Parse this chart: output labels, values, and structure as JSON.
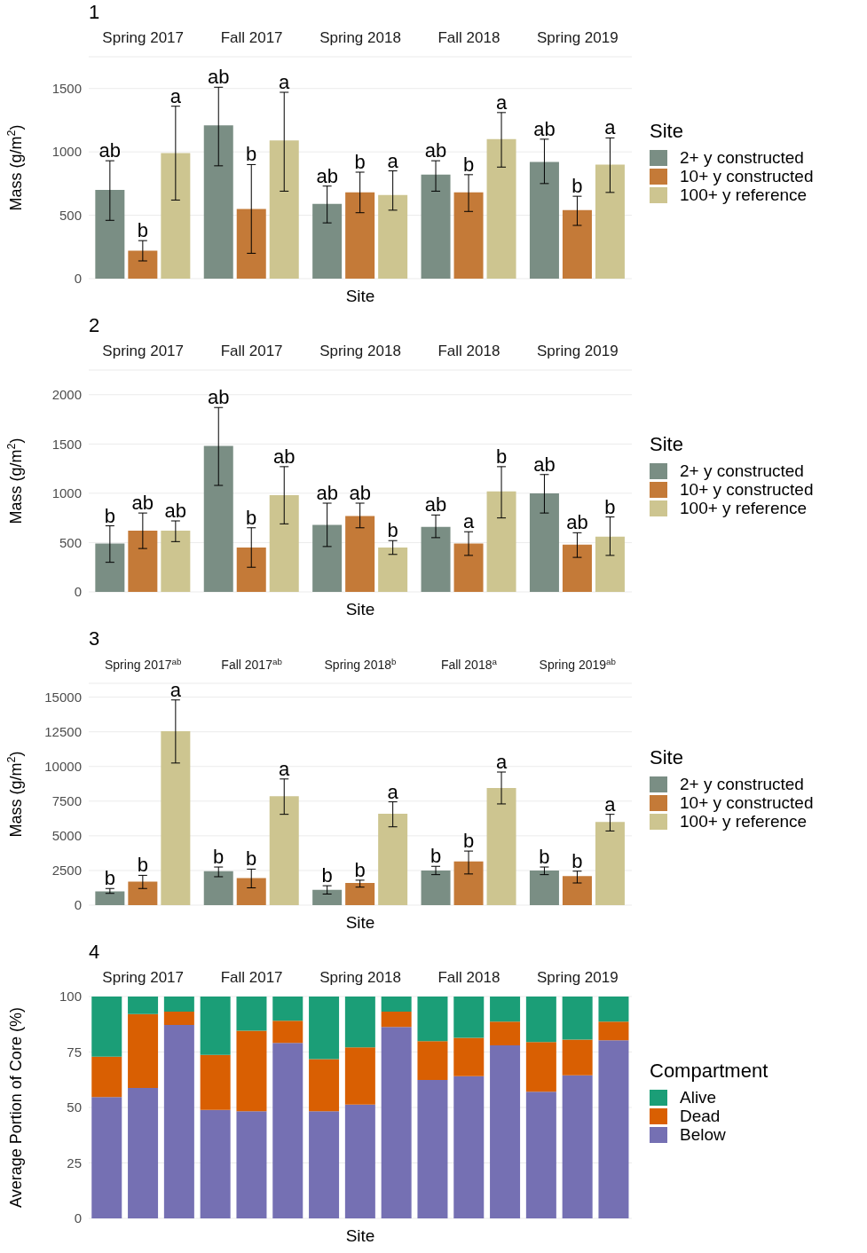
{
  "chart_data": [
    {
      "type": "bar",
      "annotations": [
        "1"
      ],
      "xlabel": "Site",
      "ylabel": "Mass (g/m$^{2}$)",
      "legend": "right",
      "legend_title": "Site",
      "categories": [
        "Spring 2017",
        "Fall 2017",
        "Spring 2018",
        "Fall 2018",
        "Spring 2019"
      ],
      "series": [
        {
          "name": "2+ y constructed",
          "color": "#7a8e84",
          "values": [
            700,
            1210,
            590,
            820,
            920
          ],
          "errors": [
            [
              460,
              930
            ],
            [
              890,
              1510
            ],
            [
              440,
              730
            ],
            [
              690,
              930
            ],
            [
              750,
              1100
            ]
          ],
          "value_labels": [
            "ab",
            "ab",
            "ab",
            "ab",
            "ab"
          ]
        },
        {
          "name": "10+ y constructed",
          "color": "#c47a38",
          "values": [
            220,
            550,
            680,
            680,
            540
          ],
          "errors": [
            [
              140,
              300
            ],
            [
              200,
              900
            ],
            [
              520,
              840
            ],
            [
              530,
              820
            ],
            [
              420,
              650
            ]
          ],
          "value_labels": [
            "b",
            "b",
            "b",
            "b",
            "b"
          ]
        },
        {
          "name": "100+ y reference",
          "color": "#cdc590",
          "values": [
            990,
            1090,
            660,
            1100,
            900
          ],
          "errors": [
            [
              620,
              1360
            ],
            [
              690,
              1470
            ],
            [
              540,
              850
            ],
            [
              880,
              1310
            ],
            [
              680,
              1110
            ]
          ],
          "value_labels": [
            "a",
            "a",
            "a",
            "a",
            "a"
          ]
        }
      ],
      "ylim": [
        0,
        1750
      ],
      "yticks": [
        0,
        500,
        1000,
        1500
      ],
      "grid": "y"
    },
    {
      "type": "bar",
      "annotations": [
        "2"
      ],
      "xlabel": "Site",
      "ylabel": "Mass (g/m$^{2}$)",
      "legend": "right",
      "legend_title": "Site",
      "categories": [
        "Spring 2017",
        "Fall 2017",
        "Spring 2018",
        "Fall 2018",
        "Spring 2019"
      ],
      "series": [
        {
          "name": "2+ y constructed",
          "color": "#7a8e84",
          "values": [
            490,
            1480,
            680,
            660,
            1000
          ],
          "errors": [
            [
              300,
              670
            ],
            [
              1080,
              1870
            ],
            [
              460,
              900
            ],
            [
              550,
              780
            ],
            [
              800,
              1190
            ]
          ],
          "value_labels": [
            "b",
            "ab",
            "ab",
            "ab",
            "ab"
          ]
        },
        {
          "name": "10+ y constructed",
          "color": "#c47a38",
          "values": [
            620,
            450,
            770,
            490,
            480
          ],
          "errors": [
            [
              440,
              800
            ],
            [
              250,
              650
            ],
            [
              650,
              900
            ],
            [
              370,
              610
            ],
            [
              350,
              600
            ]
          ],
          "value_labels": [
            "ab",
            "b",
            "ab",
            "a",
            "ab"
          ]
        },
        {
          "name": "100+ y reference",
          "color": "#cdc590",
          "values": [
            620,
            980,
            450,
            1020,
            560
          ],
          "errors": [
            [
              510,
              720
            ],
            [
              690,
              1270
            ],
            [
              380,
              520
            ],
            [
              750,
              1270
            ],
            [
              370,
              760
            ]
          ],
          "value_labels": [
            "ab",
            "ab",
            "b",
            "b",
            "b"
          ]
        }
      ],
      "ylim": [
        0,
        2250
      ],
      "yticks": [
        0,
        500,
        1000,
        1500,
        2000
      ],
      "grid": "y"
    },
    {
      "type": "bar",
      "annotations": [
        "3"
      ],
      "xlabel": "Site",
      "ylabel": "Mass (g/m$^{2}$)",
      "legend": "right",
      "legend_title": "Site",
      "categories": [
        "Spring 2017$^{ab}$",
        "Fall 2017$^{ab}$",
        "Spring 2018$^{b}$",
        "Fall 2018$^{a}$",
        "Spring 2019$^{ab}$"
      ],
      "series": [
        {
          "name": "2+ y constructed",
          "color": "#7a8e84",
          "values": [
            1000,
            2450,
            1100,
            2500,
            2500
          ],
          "errors": [
            [
              850,
              1200
            ],
            [
              2050,
              2750
            ],
            [
              800,
              1400
            ],
            [
              2200,
              2800
            ],
            [
              2200,
              2750
            ]
          ],
          "value_labels": [
            "b",
            "b",
            "b",
            "b",
            "b"
          ]
        },
        {
          "name": "10+ y constructed",
          "color": "#c47a38",
          "values": [
            1700,
            1950,
            1600,
            3150,
            2100
          ],
          "errors": [
            [
              1200,
              2150
            ],
            [
              1250,
              2600
            ],
            [
              1300,
              1800
            ],
            [
              2250,
              3900
            ],
            [
              1600,
              2450
            ]
          ],
          "value_labels": [
            "b",
            "b",
            "b",
            "b",
            "b"
          ]
        },
        {
          "name": "100+ y reference",
          "color": "#cdc590",
          "values": [
            12550,
            7850,
            6600,
            8450,
            6000
          ],
          "errors": [
            [
              10250,
              14800
            ],
            [
              6550,
              9100
            ],
            [
              5650,
              7450
            ],
            [
              7300,
              9600
            ],
            [
              5350,
              6550
            ]
          ],
          "value_labels": [
            "a",
            "a",
            "a",
            "a",
            "a"
          ]
        }
      ],
      "ylim": [
        0,
        16000
      ],
      "yticks": [
        0,
        2500,
        5000,
        7500,
        10000,
        12500,
        15000
      ],
      "grid": "y"
    },
    {
      "type": "bar",
      "annotations": [
        "4"
      ],
      "xlabel": "Site",
      "ylabel": "Average Portion of Core (%)",
      "legend": "right",
      "legend_title": "Compartment",
      "stacked": true,
      "categories": [
        null,
        "Spring 2017",
        null,
        null,
        "Fall 2017",
        null,
        null,
        "Spring 2018",
        null,
        null,
        "Fall 2018",
        null,
        null,
        "Spring 2019",
        null
      ],
      "series": [
        {
          "name": "Below",
          "color": "#7570b3",
          "values": [
            54.7,
            58.8,
            87.2,
            48.9,
            48.3,
            79.1,
            48.3,
            51.3,
            86.3,
            62.4,
            64.1,
            78.0,
            57.1,
            64.5,
            80.3
          ]
        },
        {
          "name": "Dead",
          "color": "#d95f02",
          "values": [
            18.2,
            33.3,
            6.0,
            24.8,
            36.3,
            10.0,
            23.5,
            25.8,
            6.9,
            17.5,
            17.3,
            10.7,
            22.4,
            16.1,
            8.4
          ]
        },
        {
          "name": "Alive",
          "color": "#1b9e77",
          "values": [
            27.1,
            7.9,
            6.8,
            26.3,
            15.4,
            10.9,
            28.2,
            22.9,
            6.8,
            20.1,
            18.6,
            11.3,
            20.5,
            19.4,
            11.3
          ]
        }
      ],
      "ylim": [
        0,
        100
      ],
      "yticks": [
        0,
        25,
        50,
        75,
        100
      ],
      "grid": "y"
    }
  ]
}
